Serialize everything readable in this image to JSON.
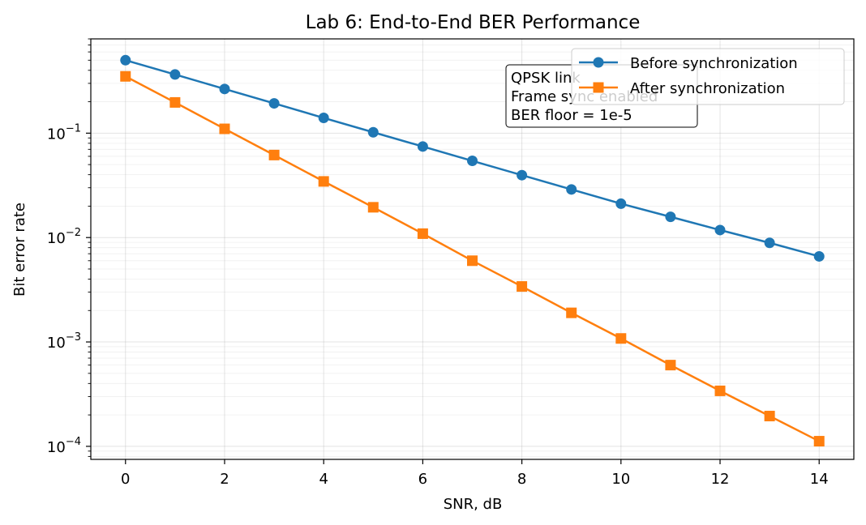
{
  "chart_data": {
    "type": "line",
    "title": "Lab 6: End-to-End BER Performance",
    "xlabel": "SNR, dB",
    "ylabel": "Bit error rate",
    "y_scale": "log",
    "xlim": [
      -0.7,
      14.7
    ],
    "ylim": [
      7.5e-05,
      0.8
    ],
    "x_ticks": [
      0,
      2,
      4,
      6,
      8,
      10,
      12,
      14
    ],
    "y_ticks": [
      {
        "base": "10",
        "exp": "−4",
        "value": 0.0001
      },
      {
        "base": "10",
        "exp": "−3",
        "value": 0.001
      },
      {
        "base": "10",
        "exp": "−2",
        "value": 0.01
      },
      {
        "base": "10",
        "exp": "−1",
        "value": 0.1
      }
    ],
    "grid": true,
    "legend_position": "top-right",
    "x": [
      0,
      1,
      2,
      3,
      4,
      5,
      6,
      7,
      8,
      9,
      10,
      11,
      12,
      13,
      14
    ],
    "series": [
      {
        "name": "Before synchronization",
        "marker": "circle",
        "color": "#1f77b4",
        "values": [
          0.5,
          0.365,
          0.265,
          0.193,
          0.14,
          0.102,
          0.0745,
          0.0543,
          0.0396,
          0.0289,
          0.0211,
          0.0158,
          0.0118,
          0.0089,
          0.0066
        ]
      },
      {
        "name": "After synchronization",
        "marker": "square",
        "color": "#ff7f0e",
        "values": [
          0.35,
          0.197,
          0.11,
          0.0617,
          0.0345,
          0.0195,
          0.0109,
          0.006,
          0.0034,
          0.0019,
          0.00108,
          0.0006,
          0.00034,
          0.000195,
          0.000112
        ]
      }
    ],
    "annotation": {
      "lines": [
        "QPSK link",
        "Frame sync enabled",
        "BER floor = 1e-5"
      ]
    }
  }
}
